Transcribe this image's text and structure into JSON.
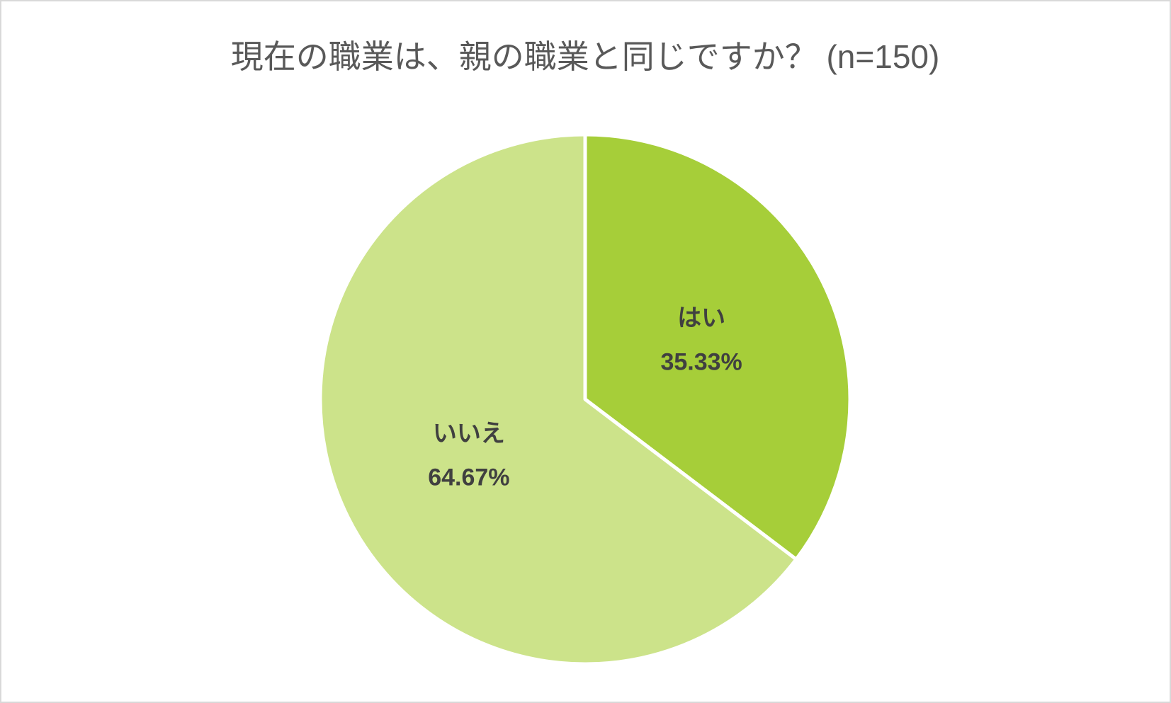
{
  "chart_data": {
    "type": "pie",
    "title": "現在の職業は、親の職業と同じですか？ (n=150)",
    "categories": [
      "はい",
      "いいえ"
    ],
    "values": [
      35.33,
      64.67
    ],
    "value_labels": [
      "35.33%",
      "64.67%"
    ],
    "colors": [
      "#a6ce39",
      "#cce38a"
    ]
  }
}
